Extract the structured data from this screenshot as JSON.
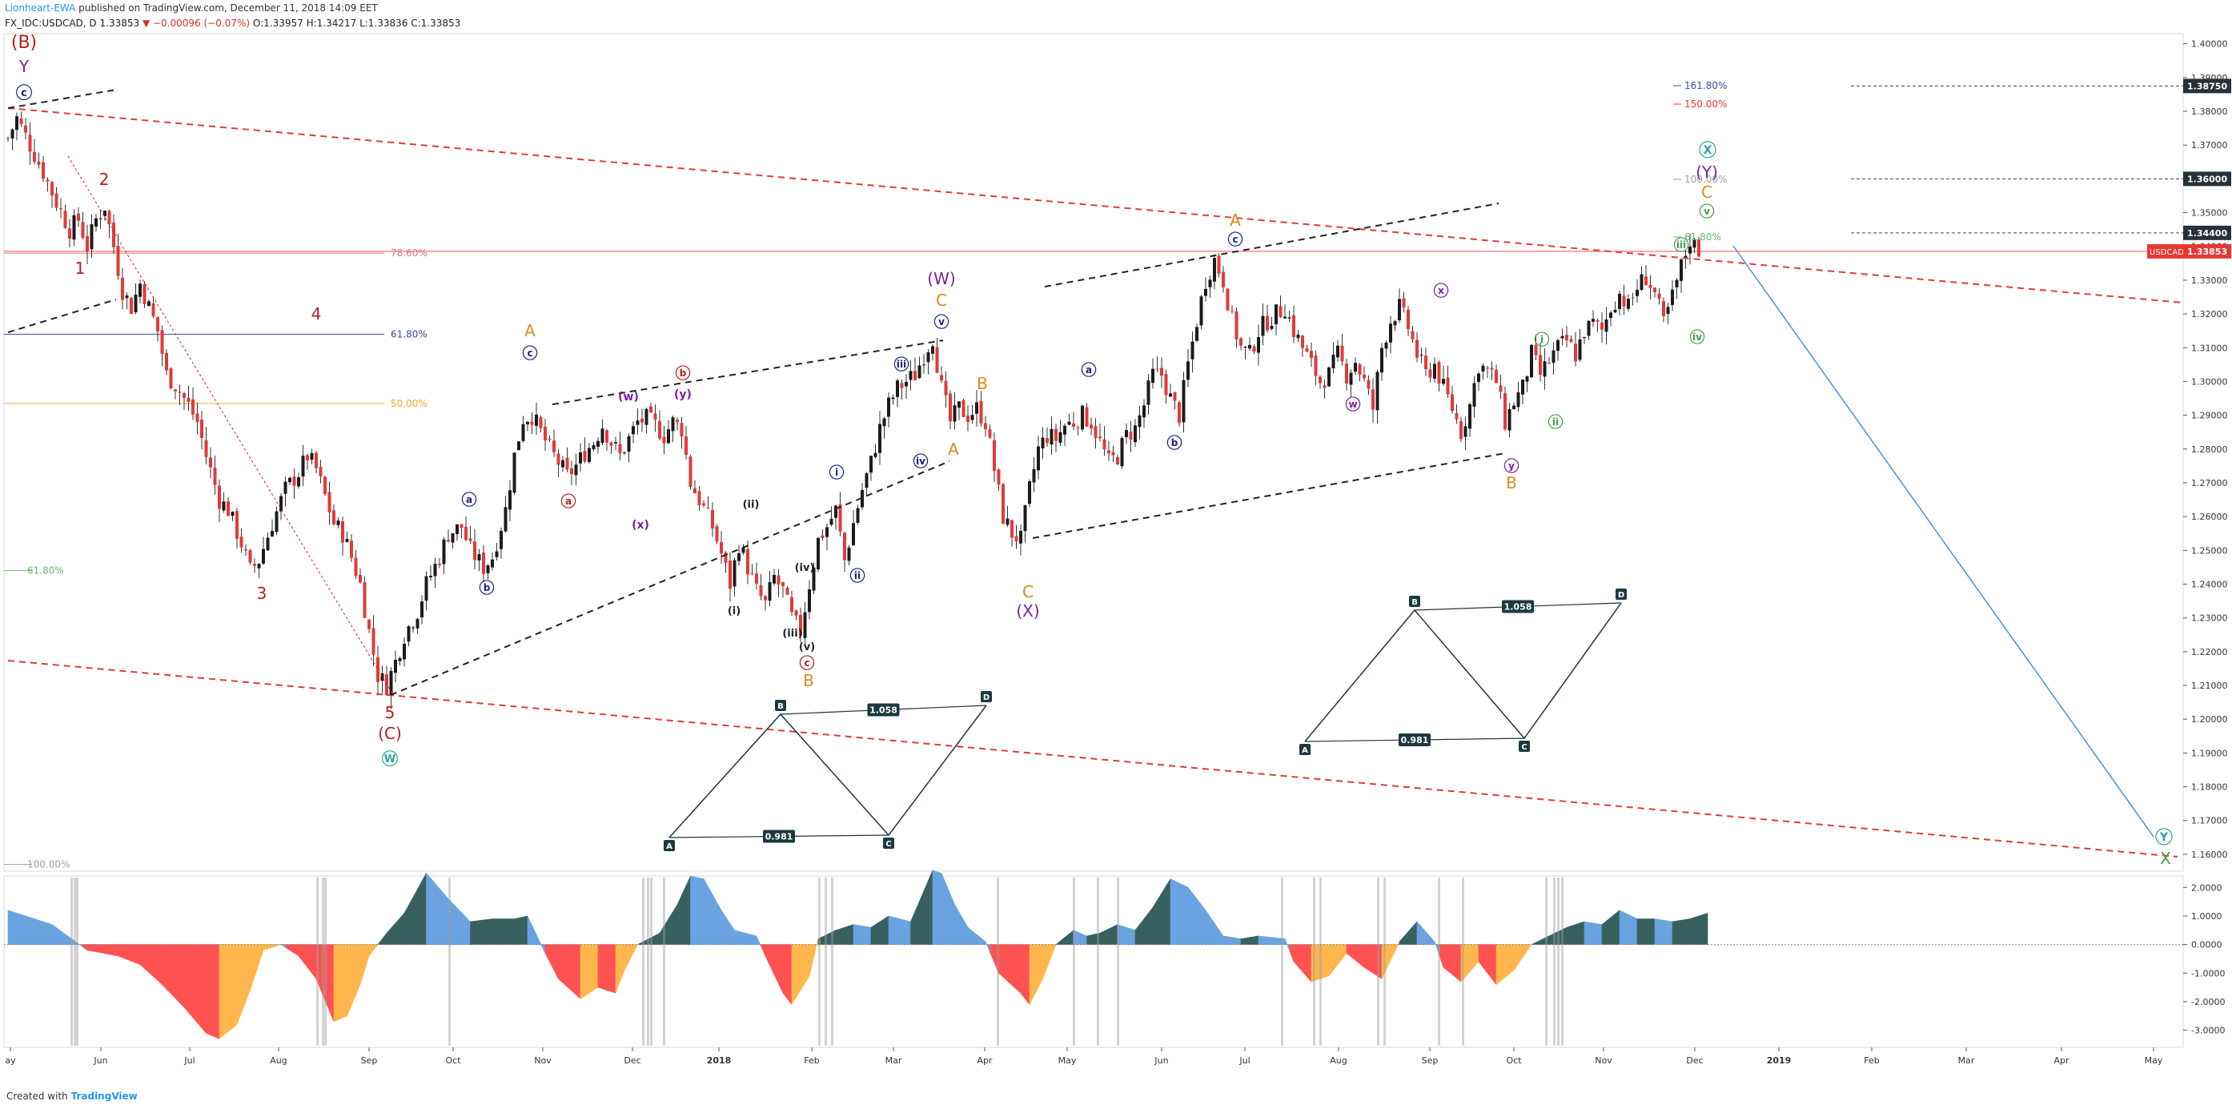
{
  "header": {
    "author": "Lionheart-EWA",
    "published": "published on TradingView.com, December 11, 2018 14:09 EET",
    "symbol": "FX_IDC:USDCAD, D",
    "last": "1.33853",
    "change": "▼ −0.00096 (−0.07%)",
    "ohlc": "O:1.33957 H:1.34217 L:1.33836 C:1.33853"
  },
  "footer": {
    "prefix": "Created with",
    "brand": "TradingView"
  },
  "chart_data": [
    {
      "type": "candlestick",
      "symbol": "USDCAD",
      "timeframe": "D",
      "x_axis_labels": [
        "ay",
        "Jun",
        "Jul",
        "Aug",
        "Sep",
        "Oct",
        "Nov",
        "Dec",
        "2018",
        "Feb",
        "Mar",
        "Apr",
        "May",
        "Jun",
        "Jul",
        "Aug",
        "Sep",
        "Oct",
        "Nov",
        "Dec",
        "2019",
        "Feb",
        "Mar",
        "Apr",
        "May"
      ],
      "y_axis_labels": [
        "1.40000",
        "1.39000",
        "1.38000",
        "1.37000",
        "1.36000",
        "1.35000",
        "1.34000",
        "1.33000",
        "1.32000",
        "1.31000",
        "1.30000",
        "1.29000",
        "1.28000",
        "1.27000",
        "1.26000",
        "1.25000",
        "1.24000",
        "1.23000",
        "1.22000",
        "1.21000",
        "1.20000",
        "1.19000",
        "1.18000",
        "1.17000",
        "1.16000"
      ],
      "ylim": [
        1.155,
        1.403
      ],
      "price_markers": [
        {
          "label": "1.38750",
          "value": 1.3875
        },
        {
          "label": "1.36000",
          "value": 1.36
        },
        {
          "label": "1.34400",
          "value": 1.344
        },
        {
          "label": "USDCAD",
          "value": 1.33853,
          "price": "1.33853"
        }
      ],
      "price_path": [
        [
          0,
          1.372
        ],
        [
          2,
          1.378
        ],
        [
          5,
          1.37
        ],
        [
          8,
          1.362
        ],
        [
          11,
          1.353
        ],
        [
          14,
          1.345
        ],
        [
          16,
          1.348
        ],
        [
          18,
          1.34
        ],
        [
          20,
          1.348
        ],
        [
          22,
          1.352
        ],
        [
          24,
          1.34
        ],
        [
          26,
          1.327
        ],
        [
          28,
          1.322
        ],
        [
          30,
          1.329
        ],
        [
          32,
          1.322
        ],
        [
          34,
          1.315
        ],
        [
          36,
          1.302
        ],
        [
          38,
          1.299
        ],
        [
          41,
          1.293
        ],
        [
          43,
          1.288
        ],
        [
          45,
          1.278
        ],
        [
          48,
          1.265
        ],
        [
          50,
          1.262
        ],
        [
          53,
          1.252
        ],
        [
          55,
          1.244
        ],
        [
          57,
          1.247
        ],
        [
          60,
          1.258
        ],
        [
          63,
          1.268
        ],
        [
          66,
          1.273
        ],
        [
          68,
          1.278
        ],
        [
          70,
          1.274
        ],
        [
          72,
          1.266
        ],
        [
          74,
          1.258
        ],
        [
          76,
          1.255
        ],
        [
          78,
          1.248
        ],
        [
          80,
          1.24
        ],
        [
          82,
          1.226
        ],
        [
          84,
          1.213
        ],
        [
          86,
          1.21
        ],
        [
          88,
          1.217
        ],
        [
          90,
          1.225
        ],
        [
          93,
          1.232
        ],
        [
          95,
          1.24
        ],
        [
          98,
          1.248
        ],
        [
          100,
          1.255
        ],
        [
          103,
          1.257
        ],
        [
          105,
          1.25
        ],
        [
          108,
          1.245
        ],
        [
          110,
          1.248
        ],
        [
          113,
          1.262
        ],
        [
          115,
          1.278
        ],
        [
          117,
          1.289
        ],
        [
          119,
          1.29
        ],
        [
          121,
          1.285
        ],
        [
          123,
          1.28
        ],
        [
          125,
          1.276
        ],
        [
          127,
          1.272
        ],
        [
          129,
          1.275
        ],
        [
          131,
          1.279
        ],
        [
          133,
          1.282
        ],
        [
          135,
          1.287
        ],
        [
          137,
          1.282
        ],
        [
          139,
          1.278
        ],
        [
          141,
          1.283
        ],
        [
          143,
          1.288
        ],
        [
          145,
          1.289
        ],
        [
          147,
          1.287
        ],
        [
          149,
          1.284
        ],
        [
          151,
          1.288
        ],
        [
          153,
          1.286
        ],
        [
          155,
          1.27
        ],
        [
          157,
          1.265
        ],
        [
          160,
          1.257
        ],
        [
          162,
          1.249
        ],
        [
          164,
          1.24
        ],
        [
          166,
          1.252
        ],
        [
          168,
          1.245
        ],
        [
          170,
          1.238
        ],
        [
          172,
          1.234
        ],
        [
          174,
          1.242
        ],
        [
          176,
          1.238
        ],
        [
          178,
          1.23
        ],
        [
          180,
          1.226
        ],
        [
          182,
          1.24
        ],
        [
          184,
          1.253
        ],
        [
          186,
          1.257
        ],
        [
          188,
          1.262
        ],
        [
          190,
          1.247
        ],
        [
          192,
          1.258
        ],
        [
          194,
          1.268
        ],
        [
          196,
          1.276
        ],
        [
          198,
          1.286
        ],
        [
          200,
          1.293
        ],
        [
          202,
          1.298
        ],
        [
          204,
          1.3
        ],
        [
          206,
          1.302
        ],
        [
          208,
          1.308
        ],
        [
          210,
          1.313
        ],
        [
          212,
          1.298
        ],
        [
          214,
          1.288
        ],
        [
          216,
          1.292
        ],
        [
          218,
          1.29
        ],
        [
          220,
          1.292
        ],
        [
          222,
          1.288
        ],
        [
          224,
          1.274
        ],
        [
          226,
          1.26
        ],
        [
          228,
          1.255
        ],
        [
          230,
          1.253
        ],
        [
          232,
          1.268
        ],
        [
          234,
          1.28
        ],
        [
          236,
          1.284
        ],
        [
          238,
          1.283
        ],
        [
          240,
          1.287
        ],
        [
          242,
          1.288
        ],
        [
          244,
          1.29
        ],
        [
          246,
          1.288
        ],
        [
          248,
          1.282
        ],
        [
          250,
          1.276
        ],
        [
          252,
          1.278
        ],
        [
          254,
          1.284
        ],
        [
          256,
          1.286
        ],
        [
          258,
          1.293
        ],
        [
          260,
          1.302
        ],
        [
          262,
          1.302
        ],
        [
          264,
          1.295
        ],
        [
          266,
          1.29
        ],
        [
          268,
          1.305
        ],
        [
          270,
          1.318
        ],
        [
          272,
          1.33
        ],
        [
          274,
          1.336
        ],
        [
          276,
          1.33
        ],
        [
          278,
          1.318
        ],
        [
          280,
          1.31
        ],
        [
          282,
          1.308
        ],
        [
          284,
          1.315
        ],
        [
          286,
          1.318
        ],
        [
          288,
          1.32
        ],
        [
          290,
          1.322
        ],
        [
          292,
          1.315
        ],
        [
          294,
          1.31
        ],
        [
          296,
          1.305
        ],
        [
          298,
          1.3
        ],
        [
          300,
          1.302
        ],
        [
          302,
          1.308
        ],
        [
          304,
          1.302
        ],
        [
          306,
          1.306
        ],
        [
          308,
          1.3
        ],
        [
          310,
          1.292
        ],
        [
          312,
          1.31
        ],
        [
          314,
          1.318
        ],
        [
          316,
          1.322
        ],
        [
          318,
          1.316
        ],
        [
          320,
          1.308
        ],
        [
          322,
          1.302
        ],
        [
          324,
          1.305
        ],
        [
          326,
          1.298
        ],
        [
          328,
          1.292
        ],
        [
          330,
          1.285
        ],
        [
          332,
          1.293
        ],
        [
          334,
          1.305
        ],
        [
          336,
          1.303
        ],
        [
          338,
          1.3
        ],
        [
          340,
          1.288
        ],
        [
          342,
          1.294
        ],
        [
          344,
          1.298
        ],
        [
          346,
          1.308
        ],
        [
          348,
          1.302
        ],
        [
          350,
          1.306
        ],
        [
          352,
          1.31
        ],
        [
          354,
          1.312
        ],
        [
          356,
          1.308
        ],
        [
          358,
          1.315
        ],
        [
          360,
          1.317
        ],
        [
          362,
          1.315
        ],
        [
          364,
          1.322
        ],
        [
          366,
          1.326
        ],
        [
          368,
          1.322
        ],
        [
          370,
          1.328
        ],
        [
          372,
          1.331
        ],
        [
          374,
          1.326
        ],
        [
          376,
          1.317
        ],
        [
          378,
          1.325
        ],
        [
          380,
          1.334
        ],
        [
          382,
          1.342
        ],
        [
          384,
          1.339
        ]
      ]
    },
    {
      "type": "area",
      "name": "oscillator",
      "y_axis_labels": [
        "2.0000",
        "1.0000",
        "0.0000",
        "-1.0000",
        "-2.0000",
        "-3.0000"
      ],
      "ylim": [
        -3.6,
        2.4
      ],
      "values": [
        [
          0,
          1.2
        ],
        [
          10,
          0.7
        ],
        [
          18,
          -0.2
        ],
        [
          25,
          -0.4
        ],
        [
          30,
          -0.7
        ],
        [
          35,
          -1.4
        ],
        [
          40,
          -2.2
        ],
        [
          45,
          -3.1
        ],
        [
          48,
          -3.3
        ],
        [
          52,
          -2.8
        ],
        [
          55,
          -1.6
        ],
        [
          58,
          -0.2
        ],
        [
          62,
          0
        ],
        [
          66,
          -0.4
        ],
        [
          70,
          -1.2
        ],
        [
          74,
          -2.7
        ],
        [
          77,
          -2.5
        ],
        [
          80,
          -1.4
        ],
        [
          82,
          -0.4
        ],
        [
          86,
          0.4
        ],
        [
          90,
          1.1
        ],
        [
          95,
          2.5
        ],
        [
          100,
          1.6
        ],
        [
          105,
          0.8
        ],
        [
          110,
          0.9
        ],
        [
          115,
          0.9
        ],
        [
          118,
          1.0
        ],
        [
          122,
          -0.3
        ],
        [
          125,
          -1.2
        ],
        [
          130,
          -1.9
        ],
        [
          134,
          -1.5
        ],
        [
          138,
          -1.7
        ],
        [
          140,
          -0.9
        ],
        [
          143,
          0
        ],
        [
          148,
          0.4
        ],
        [
          152,
          1.4
        ],
        [
          155,
          2.4
        ],
        [
          158,
          2.3
        ],
        [
          162,
          1.2
        ],
        [
          165,
          0.5
        ],
        [
          170,
          0.3
        ],
        [
          172,
          -0.4
        ],
        [
          176,
          -1.7
        ],
        [
          178,
          -2.1
        ],
        [
          182,
          -1.1
        ],
        [
          184,
          0.2
        ],
        [
          188,
          0.5
        ],
        [
          192,
          0.7
        ],
        [
          196,
          0.6
        ],
        [
          200,
          1.0
        ],
        [
          205,
          0.8
        ],
        [
          210,
          2.6
        ],
        [
          212,
          2.5
        ],
        [
          215,
          1.4
        ],
        [
          218,
          0.6
        ],
        [
          222,
          0.1
        ],
        [
          225,
          -1.0
        ],
        [
          230,
          -1.7
        ],
        [
          232,
          -2.1
        ],
        [
          235,
          -1.2
        ],
        [
          238,
          0
        ],
        [
          242,
          0.5
        ],
        [
          245,
          0.3
        ],
        [
          248,
          0.4
        ],
        [
          252,
          0.7
        ],
        [
          256,
          0.5
        ],
        [
          260,
          1.3
        ],
        [
          264,
          2.3
        ],
        [
          268,
          2.0
        ],
        [
          272,
          1.2
        ],
        [
          276,
          0.3
        ],
        [
          280,
          0.2
        ],
        [
          284,
          0.3
        ],
        [
          290,
          0.2
        ],
        [
          292,
          -0.6
        ],
        [
          296,
          -1.3
        ],
        [
          300,
          -1.1
        ],
        [
          304,
          -0.3
        ],
        [
          308,
          -0.8
        ],
        [
          312,
          -1.2
        ],
        [
          316,
          0.1
        ],
        [
          320,
          0.8
        ],
        [
          324,
          0.1
        ],
        [
          326,
          -0.8
        ],
        [
          330,
          -1.3
        ],
        [
          334,
          -0.6
        ],
        [
          338,
          -1.4
        ],
        [
          342,
          -0.9
        ],
        [
          346,
          0
        ],
        [
          350,
          0.3
        ],
        [
          354,
          0.6
        ],
        [
          358,
          0.8
        ],
        [
          362,
          0.7
        ],
        [
          366,
          1.2
        ],
        [
          370,
          0.9
        ],
        [
          374,
          0.9
        ],
        [
          378,
          0.8
        ],
        [
          382,
          0.9
        ],
        [
          386,
          1.1
        ]
      ]
    }
  ],
  "annotations": {
    "fib_levels": [
      {
        "label": "78.60%",
        "value": 1.338
      },
      {
        "label": "61.80%",
        "value": 1.314
      },
      {
        "label": "50.00%",
        "value": 1.2935
      },
      {
        "label": "61.80%",
        "value": 1.244
      },
      {
        "label": "100.00%",
        "value": 1.157
      }
    ],
    "fib_ext": [
      "161.80%",
      "150.00%",
      "100.00%",
      "61.80%"
    ],
    "waves": [
      "(B)",
      "Y",
      "c",
      "1",
      "2",
      "3",
      "4",
      "5",
      "(C)",
      "W",
      "A",
      "c",
      "a",
      "b",
      "a",
      "b",
      "(w)",
      "(x)",
      "(y)",
      "(ii)",
      "(iv)",
      "(i)",
      "(iii)",
      "(v)",
      "c",
      "B",
      "i",
      "ii",
      "iii",
      "iv",
      "v",
      "(W)",
      "C",
      "B",
      "A",
      "C",
      "(X)",
      "a",
      "b",
      "A",
      "c",
      "x",
      "w",
      "i",
      "ii",
      "iii",
      "iv",
      "y",
      "B",
      "v",
      "C",
      "(Y)",
      "X",
      "Y",
      "X"
    ],
    "pattern_labels": [
      "A",
      "B",
      "C",
      "D"
    ],
    "ratios": [
      "1.058",
      "0.981"
    ]
  }
}
